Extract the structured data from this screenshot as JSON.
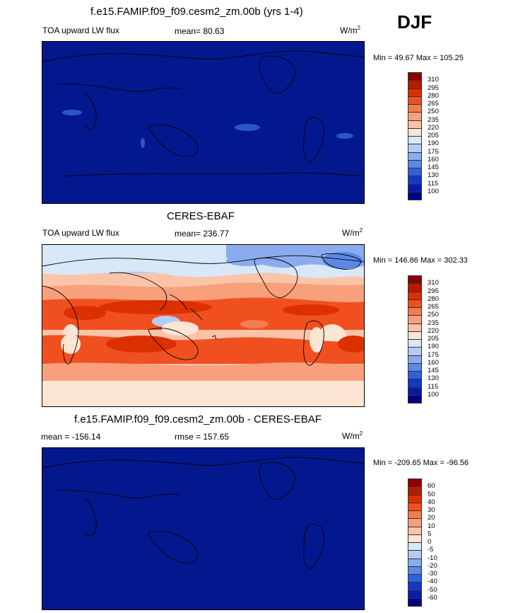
{
  "season": "DJF",
  "panels": [
    {
      "title": "f.e15.FAMIP.f09_f09.cesm2_zm.00b (yrs 1-4)",
      "left_label": "TOA upward LW flux",
      "center_label": "mean=  80.63",
      "units_base": "W/m",
      "units_exp": "2",
      "minmax": "Min =  49.67 Max = 105.25",
      "colorbar_levels": [
        "310",
        "295",
        "280",
        "265",
        "250",
        "235",
        "220",
        "205",
        "190",
        "175",
        "160",
        "145",
        "130",
        "115",
        "100"
      ],
      "field": "uniform-low"
    },
    {
      "title": "CERES-EBAF",
      "left_label": "TOA upward LW flux",
      "center_label": "mean= 236.77",
      "units_base": "W/m",
      "units_exp": "2",
      "minmax": "Min = 146.86 Max = 302.33",
      "colorbar_levels": [
        "310",
        "295",
        "280",
        "265",
        "250",
        "235",
        "220",
        "205",
        "190",
        "175",
        "160",
        "145",
        "130",
        "115",
        "100"
      ],
      "field": "observed"
    },
    {
      "title": "f.e15.FAMIP.f09_f09.cesm2_zm.00b - CERES-EBAF",
      "left_label": "mean = -156.14",
      "center_label": "rmse = 157.65",
      "units_base": "W/m",
      "units_exp": "2",
      "minmax": "Min = -209.65 Max = -96.56",
      "colorbar_levels": [
        "60",
        "50",
        "40",
        "30",
        "20",
        "10",
        "5",
        "0",
        "-5",
        "-10",
        "-20",
        "-30",
        "-40",
        "-50",
        "-60"
      ],
      "field": "uniform-low"
    }
  ],
  "colorbar_colors": [
    "#8a0000",
    "#b81a00",
    "#dc3000",
    "#f05020",
    "#f47c50",
    "#f8a07c",
    "#fbc4a8",
    "#fde5d4",
    "#d8e8f8",
    "#b4ccf4",
    "#8aacee",
    "#5c88e6",
    "#3060dc",
    "#1438c8",
    "#0a1aa8",
    "#000080"
  ],
  "map_fill_low": "#03188e"
}
